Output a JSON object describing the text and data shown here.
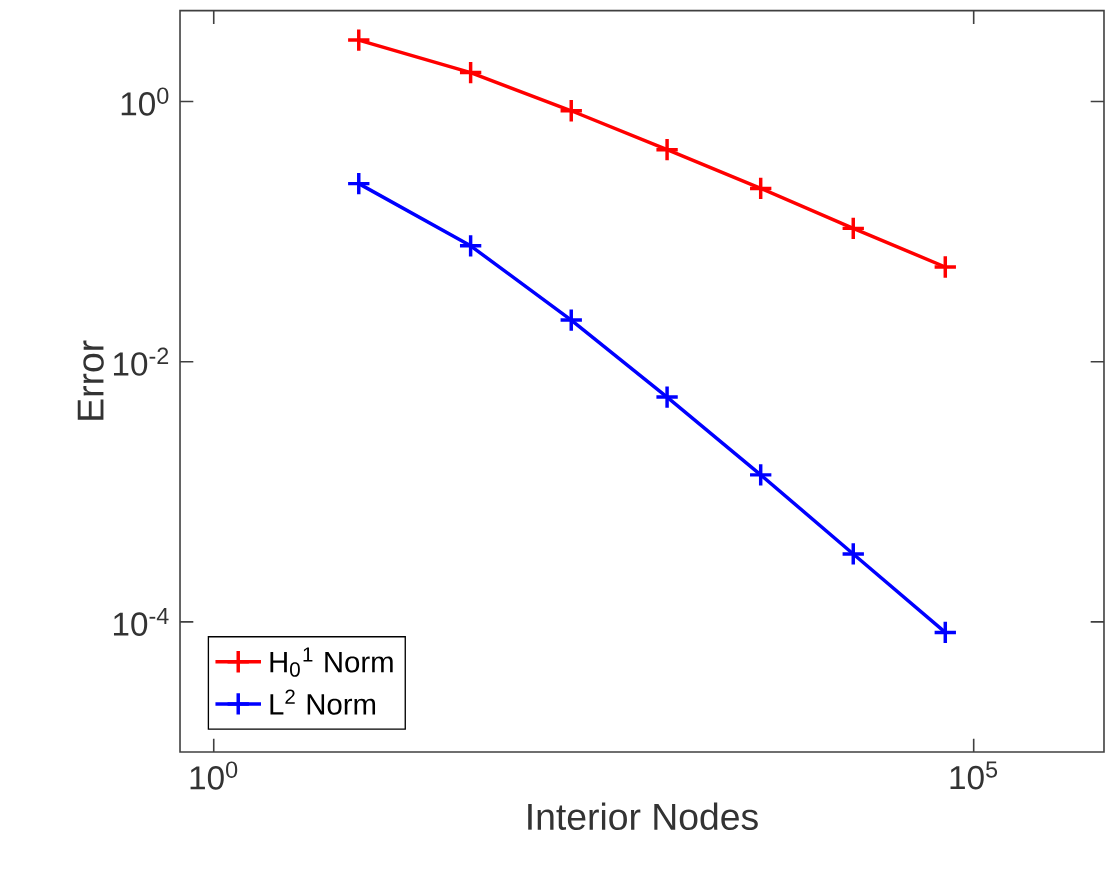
{
  "chart_data": {
    "type": "line",
    "xlabel": "Interior Nodes",
    "ylabel": "Error",
    "log": "xy",
    "grid": false,
    "legend": "bottom left",
    "marker": "cross",
    "line_style": "solid",
    "x": [
      9,
      49,
      225,
      961,
      3969,
      16129,
      65025
    ],
    "xlim": [
      0.6,
      720000
    ],
    "ylim": [
      1e-05,
      5
    ],
    "xticks": [
      {
        "value": 1,
        "label": "10$^{0}$"
      },
      {
        "value": 100000,
        "label": "10$^{5}$"
      }
    ],
    "yticks": [
      {
        "value": 0.0001,
        "label": "10$^{-4}$"
      },
      {
        "value": 0.01,
        "label": "10$^{-2}$"
      },
      {
        "value": 1,
        "label": "10$^{0}$"
      }
    ],
    "series": [
      {
        "name": "H$_{0}$$^{1}$ Norm",
        "color": "#ff0000",
        "values": [
          2.97,
          1.67,
          0.85,
          0.427,
          0.215,
          0.106,
          0.0535
        ]
      },
      {
        "name": "L$^{2}$ Norm",
        "color": "#0000ff",
        "values": [
          0.234,
          0.0778,
          0.0209,
          0.00535,
          0.00135,
          0.000333,
          8.3e-05
        ]
      }
    ]
  }
}
